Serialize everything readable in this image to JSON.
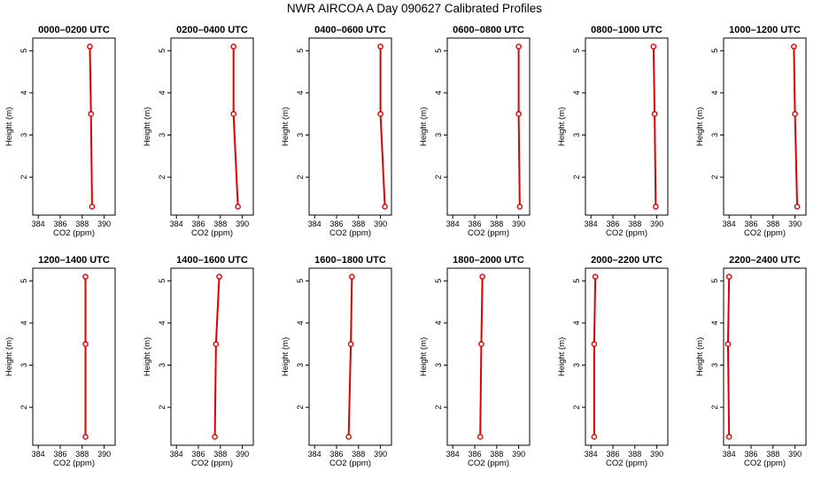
{
  "title": "NWR AIRCOA A  Day 090627  Calibrated Profiles",
  "chart_data": {
    "type": "line",
    "title": "NWR AIRCOA A  Day 090627  Calibrated Profiles",
    "xlabel": "CO2 (ppm)",
    "ylabel": "Height (m)",
    "xlim": [
      383.5,
      391.0
    ],
    "ylim": [
      1.1,
      5.3
    ],
    "x_ticks": [
      384,
      386,
      388,
      390
    ],
    "y_ticks": [
      2,
      3,
      4,
      5
    ],
    "grid": false,
    "line_color": "#dd0000",
    "marker": "open circle",
    "heights": [
      5.1,
      3.5,
      1.3
    ],
    "panels": [
      {
        "title": "0000–0200 UTC",
        "co2": [
          388.7,
          388.8,
          388.9
        ]
      },
      {
        "title": "0200–0400 UTC",
        "co2": [
          389.2,
          389.2,
          389.6
        ]
      },
      {
        "title": "0400–0600 UTC",
        "co2": [
          390.0,
          390.0,
          390.4
        ]
      },
      {
        "title": "0600–0800 UTC",
        "co2": [
          390.0,
          390.0,
          390.1
        ]
      },
      {
        "title": "0800–1000 UTC",
        "co2": [
          389.7,
          389.8,
          389.9
        ]
      },
      {
        "title": "1000–1200 UTC",
        "co2": [
          389.9,
          390.0,
          390.2
        ]
      },
      {
        "title": "1200–1400 UTC",
        "co2": [
          388.3,
          388.3,
          388.3
        ]
      },
      {
        "title": "1400–1600 UTC",
        "co2": [
          387.9,
          387.6,
          387.5
        ]
      },
      {
        "title": "1600–1800 UTC",
        "co2": [
          387.4,
          387.3,
          387.1
        ]
      },
      {
        "title": "1800–2000 UTC",
        "co2": [
          386.7,
          386.6,
          386.5
        ]
      },
      {
        "title": "2000–2200 UTC",
        "co2": [
          384.4,
          384.3,
          384.3
        ]
      },
      {
        "title": "2200–2400 UTC",
        "co2": [
          384.0,
          383.9,
          384.0
        ]
      }
    ]
  }
}
